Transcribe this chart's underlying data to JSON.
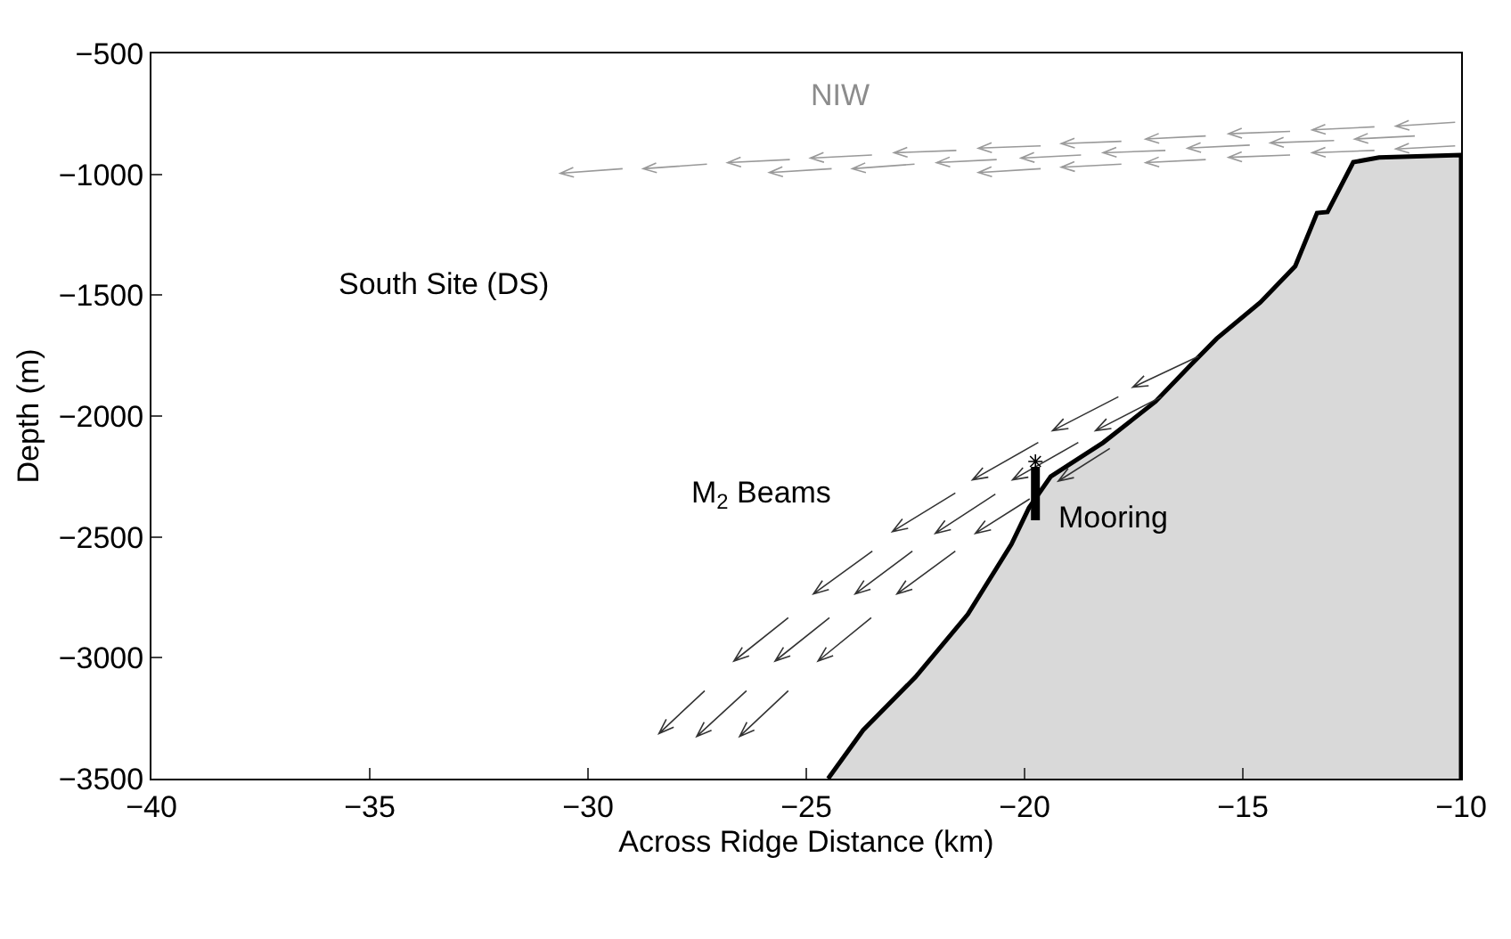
{
  "chart_data": {
    "type": "area",
    "xlabel": "Across Ridge Distance (km)",
    "ylabel": "Depth (m)",
    "x": [
      -24.5,
      -23.7,
      -22.5,
      -21.3,
      -20.3,
      -19.9,
      -19.4,
      -18.2,
      -17.0,
      -16.2,
      -15.6,
      -14.6,
      -13.8,
      -13.3,
      -13.06,
      -12.47,
      -11.88,
      -10
    ],
    "values": [
      -3500,
      -3300,
      -3080,
      -2820,
      -2530,
      -2380,
      -2250,
      -2110,
      -1940,
      -1790,
      -1680,
      -1530,
      -1380,
      -1160,
      -1156,
      -950,
      -930,
      -920
    ],
    "color": "#d9d9d9",
    "xlim": [
      -40,
      -10
    ],
    "xticks": [
      -40,
      -35,
      -30,
      -25,
      -20,
      -15,
      -10
    ],
    "ylim": [
      -3500,
      -500
    ],
    "yticks": [
      -3500,
      -3000,
      -2500,
      -2000,
      -1500,
      -1000,
      -500
    ],
    "annotations": [
      "NIW",
      "South Site (DS)",
      "M$_{2}$ Beams",
      "Mooring"
    ]
  }
}
